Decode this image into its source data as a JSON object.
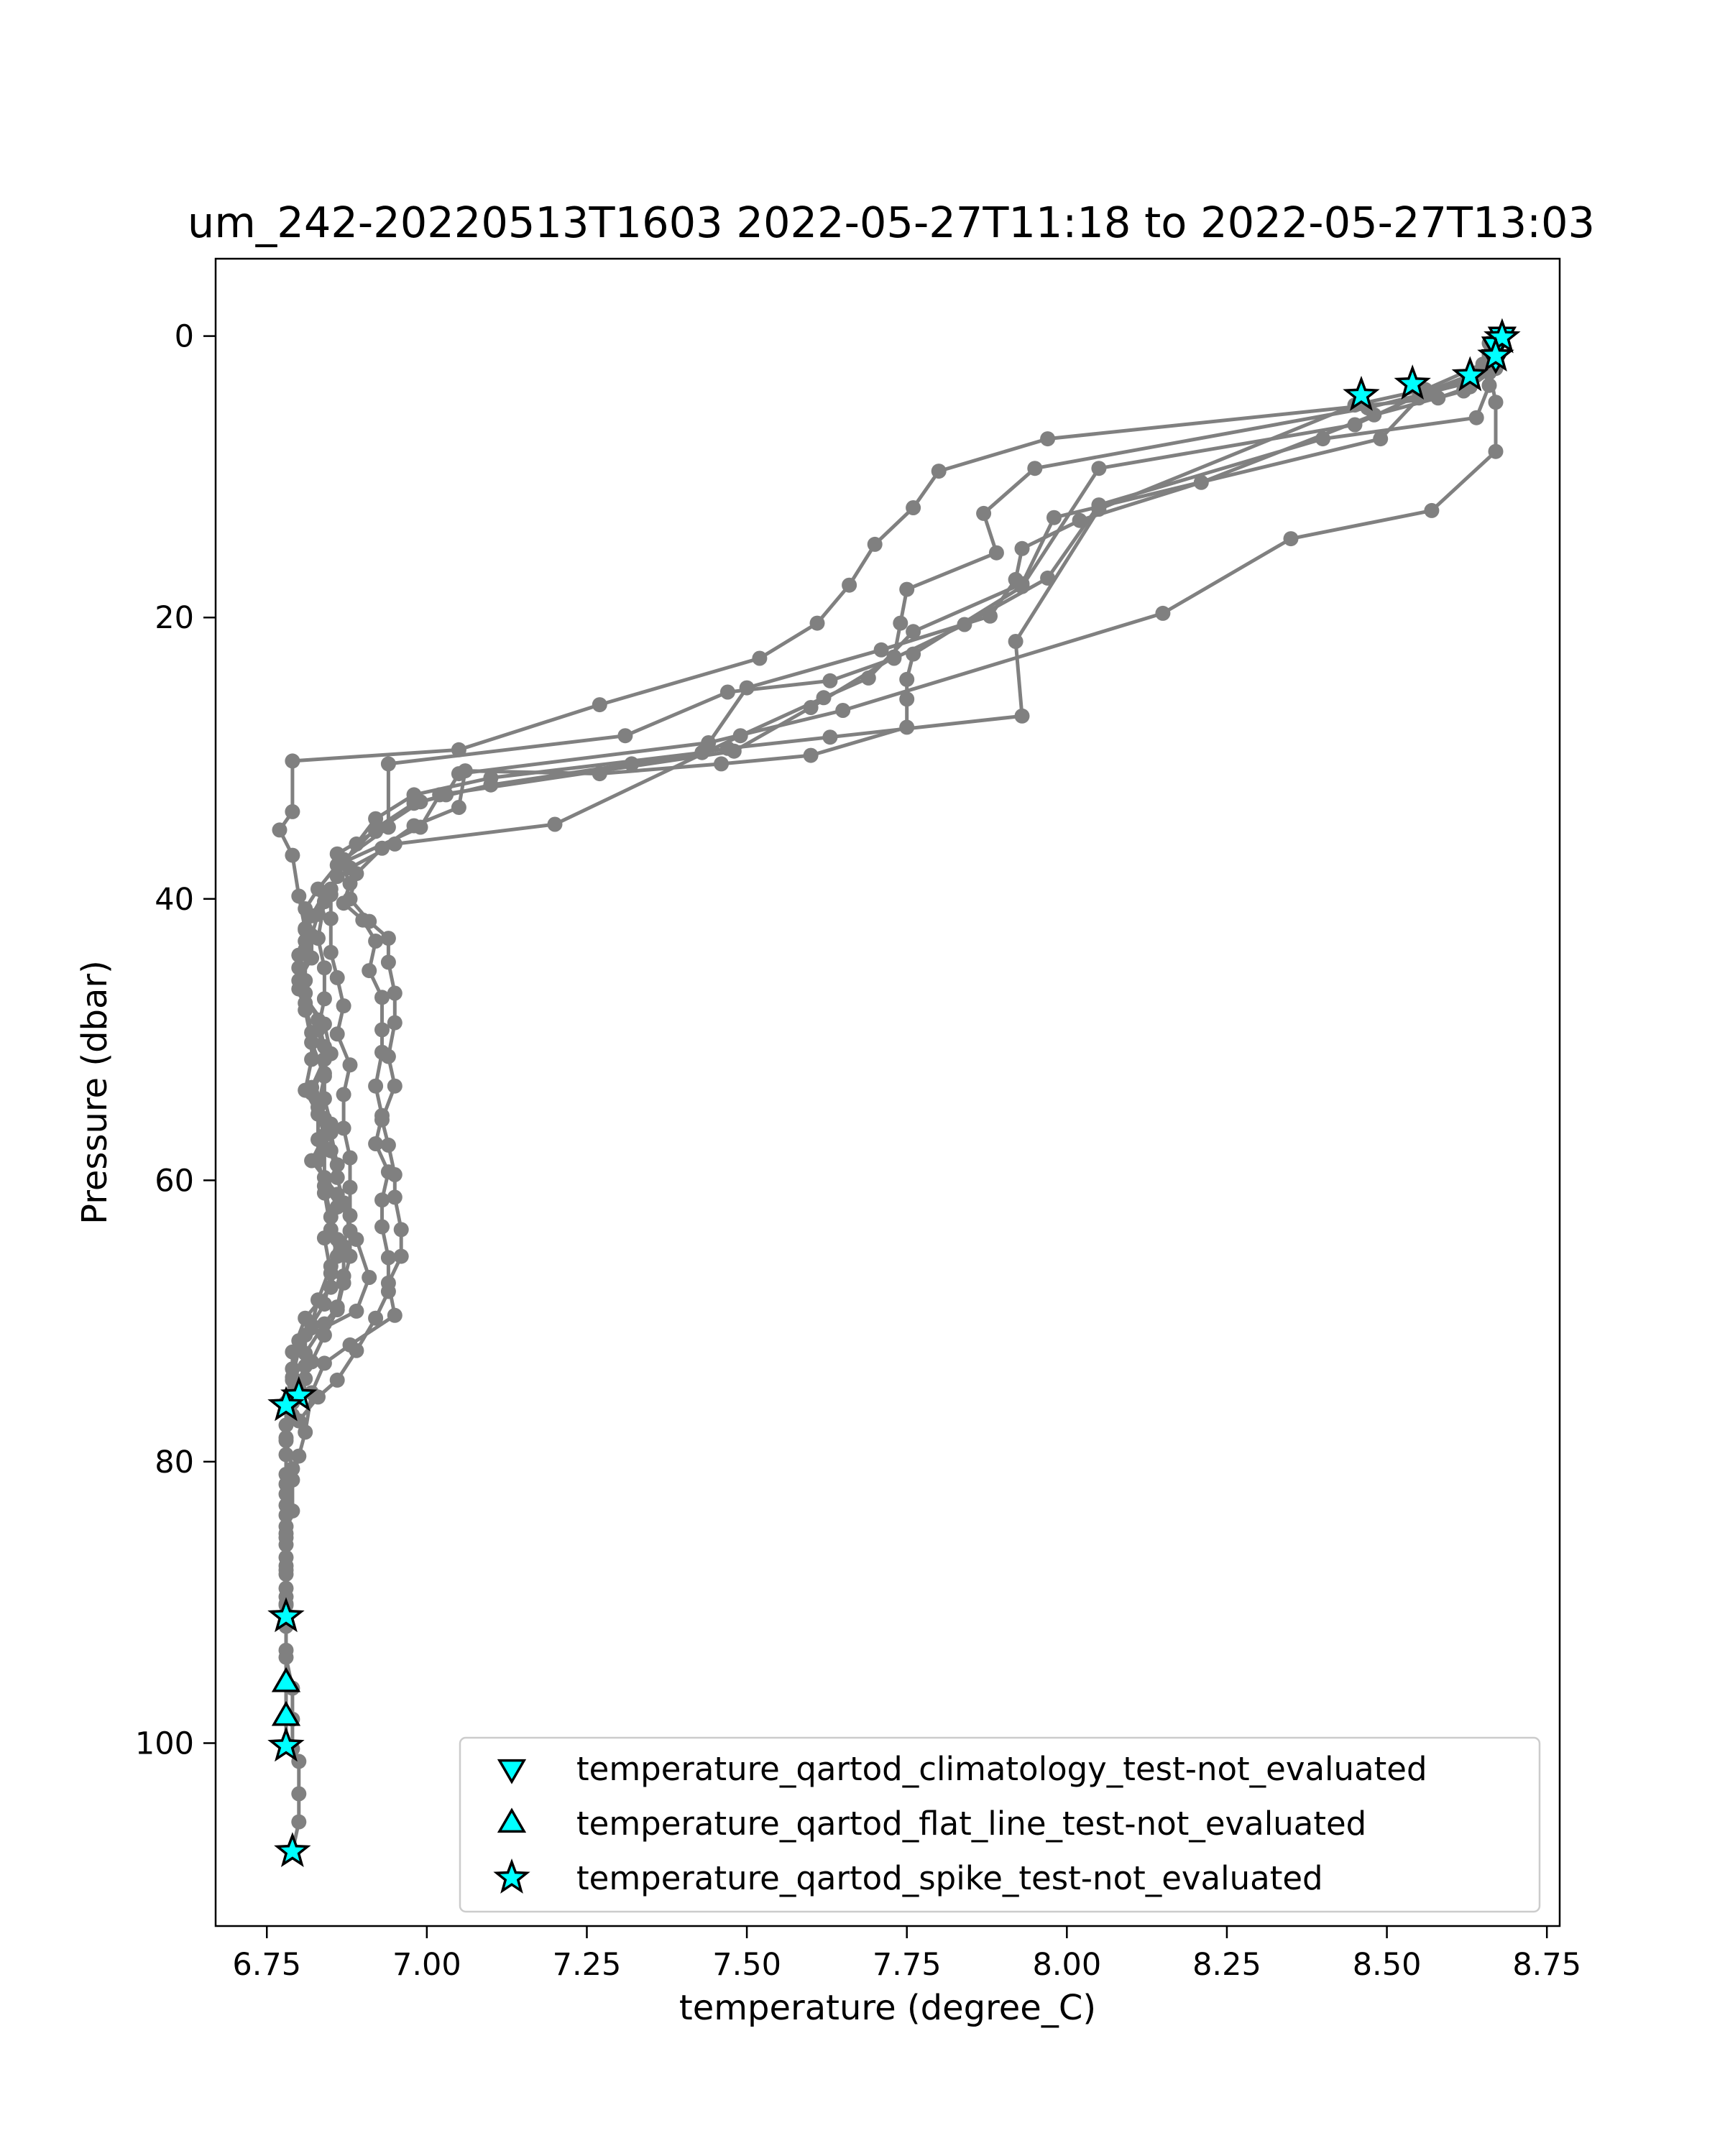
{
  "chart_data": {
    "type": "line",
    "title": "um_242-20220513T1603 2022-05-27T11:18 to 2022-05-27T13:03",
    "xlabel": "temperature (degree_C)",
    "ylabel": "Pressure (dbar)",
    "xlim": [
      6.67,
      8.77
    ],
    "ylim": [
      113,
      -5.5
    ],
    "y_inverted": true,
    "grid": false,
    "legend_position": "lower-right",
    "x_ticks": [
      6.75,
      7.0,
      7.25,
      7.5,
      7.75,
      8.0,
      8.25,
      8.5,
      8.75
    ],
    "x_tick_labels": [
      "6.75",
      "7.00",
      "7.25",
      "7.50",
      "7.75",
      "8.00",
      "8.25",
      "8.50",
      "8.75"
    ],
    "y_ticks": [
      0,
      20,
      40,
      60,
      80,
      100
    ],
    "y_tick_labels": [
      "0",
      "20",
      "40",
      "60",
      "80",
      "100"
    ],
    "colors": {
      "profile_line": "#808080",
      "flag_fill": "#00ffff",
      "flag_edge": "#000000"
    },
    "profiles": [
      [
        [
          8.68,
          0.0
        ],
        [
          8.67,
          1.2
        ],
        [
          8.67,
          2.3
        ],
        [
          8.63,
          3.6
        ],
        [
          8.58,
          4.4
        ],
        [
          7.97,
          7.3
        ],
        [
          7.8,
          9.6
        ],
        [
          7.76,
          12.2
        ],
        [
          7.7,
          14.8
        ],
        [
          7.66,
          17.7
        ],
        [
          7.61,
          20.4
        ],
        [
          7.52,
          22.9
        ],
        [
          7.27,
          26.2
        ],
        [
          7.05,
          29.4
        ],
        [
          6.79,
          30.2
        ],
        [
          6.79,
          33.8
        ],
        [
          6.77,
          35.1
        ],
        [
          6.79,
          36.9
        ],
        [
          6.8,
          39.8
        ],
        [
          6.81,
          42.2
        ],
        [
          6.8,
          44.0
        ],
        [
          6.8,
          46.4
        ],
        [
          6.84,
          48.9
        ],
        [
          6.85,
          51.0
        ],
        [
          6.82,
          53.8
        ],
        [
          6.84,
          56.8
        ],
        [
          6.82,
          58.6
        ],
        [
          6.86,
          61.0
        ],
        [
          6.89,
          64.2
        ],
        [
          6.91,
          66.9
        ],
        [
          6.89,
          69.3
        ],
        [
          6.8,
          71.4
        ],
        [
          6.79,
          73.4
        ],
        [
          6.78,
          75.8
        ],
        [
          6.78,
          78.3
        ],
        [
          6.78,
          80.9
        ],
        [
          6.78,
          83.1
        ],
        [
          6.78,
          85.4
        ],
        [
          6.78,
          87.7
        ],
        [
          6.78,
          90.1
        ],
        [
          6.78,
          91.0
        ]
      ],
      [
        [
          8.67,
          0.6
        ],
        [
          8.66,
          2.1
        ],
        [
          8.62,
          3.4
        ],
        [
          8.47,
          5.1
        ],
        [
          7.95,
          9.4
        ],
        [
          7.87,
          12.6
        ],
        [
          7.89,
          15.4
        ],
        [
          7.75,
          18.0
        ],
        [
          7.74,
          20.4
        ],
        [
          7.73,
          22.8
        ],
        [
          7.6,
          26.4
        ],
        [
          7.48,
          29.5
        ],
        [
          7.02,
          32.6
        ],
        [
          6.99,
          34.9
        ],
        [
          6.86,
          37.6
        ],
        [
          6.83,
          39.3
        ],
        [
          6.81,
          40.7
        ],
        [
          6.81,
          42.1
        ],
        [
          6.81,
          43.6
        ],
        [
          6.81,
          45.8
        ],
        [
          6.81,
          47.9
        ],
        [
          6.82,
          50.2
        ],
        [
          6.84,
          52.6
        ],
        [
          6.83,
          54.8
        ],
        [
          6.85,
          56.6
        ],
        [
          6.86,
          58.9
        ],
        [
          6.84,
          60.9
        ],
        [
          6.85,
          63.5
        ],
        [
          6.86,
          65.4
        ],
        [
          6.85,
          67.6
        ],
        [
          6.81,
          69.8
        ],
        [
          6.79,
          72.2
        ],
        [
          6.79,
          74.2
        ],
        [
          6.78,
          76.1
        ],
        [
          6.78,
          78.5
        ],
        [
          6.79,
          80.5
        ],
        [
          6.78,
          82.3
        ],
        [
          6.78,
          84.6
        ],
        [
          6.78,
          86.8
        ],
        [
          6.78,
          89.0
        ],
        [
          6.78,
          91.3
        ],
        [
          6.78,
          93.4
        ],
        [
          6.78,
          95.7
        ],
        [
          6.78,
          98.1
        ],
        [
          6.78,
          100.2
        ]
      ],
      [
        [
          8.67,
          1.0
        ],
        [
          8.64,
          2.6
        ],
        [
          8.56,
          4.0
        ],
        [
          8.45,
          6.3
        ],
        [
          8.05,
          9.4
        ],
        [
          7.93,
          17.8
        ],
        [
          7.76,
          22.6
        ],
        [
          7.75,
          24.4
        ],
        [
          7.75,
          25.8
        ],
        [
          7.75,
          27.8
        ],
        [
          7.6,
          29.8
        ],
        [
          7.46,
          30.4
        ],
        [
          7.27,
          31.1
        ],
        [
          7.06,
          30.9
        ],
        [
          7.05,
          33.5
        ],
        [
          6.98,
          34.8
        ],
        [
          6.93,
          36.4
        ],
        [
          6.89,
          38.2
        ],
        [
          6.88,
          40.0
        ],
        [
          6.91,
          41.6
        ],
        [
          6.94,
          42.8
        ],
        [
          6.94,
          44.5
        ],
        [
          6.95,
          46.7
        ],
        [
          6.95,
          48.8
        ],
        [
          6.94,
          51.2
        ],
        [
          6.95,
          53.3
        ],
        [
          6.93,
          55.7
        ],
        [
          6.94,
          57.5
        ],
        [
          6.95,
          59.6
        ],
        [
          6.95,
          61.2
        ],
        [
          6.96,
          63.5
        ],
        [
          6.96,
          65.4
        ],
        [
          6.94,
          67.3
        ],
        [
          6.95,
          69.6
        ],
        [
          6.88,
          71.7
        ],
        [
          6.84,
          73.0
        ],
        [
          6.82,
          75.1
        ],
        [
          6.81,
          77.9
        ],
        [
          6.8,
          79.6
        ],
        [
          6.79,
          81.3
        ],
        [
          6.79,
          83.5
        ],
        [
          6.78,
          85.1
        ],
        [
          6.78,
          87.4
        ],
        [
          6.78,
          89.6
        ],
        [
          6.78,
          91.7
        ],
        [
          6.78,
          93.9
        ],
        [
          6.79,
          96.1
        ],
        [
          6.79,
          98.3
        ],
        [
          6.79,
          100.4
        ],
        [
          6.8,
          101.3
        ],
        [
          6.8,
          103.6
        ],
        [
          6.8,
          105.6
        ],
        [
          6.79,
          107.7
        ]
      ],
      [
        [
          8.67,
          0.9
        ],
        [
          8.66,
          2.4
        ],
        [
          8.67,
          4.7
        ],
        [
          8.67,
          8.2
        ],
        [
          8.57,
          12.4
        ],
        [
          8.35,
          14.4
        ],
        [
          8.15,
          19.7
        ],
        [
          7.65,
          26.6
        ],
        [
          7.44,
          28.9
        ],
        [
          7.05,
          31.1
        ],
        [
          7.03,
          32.6
        ],
        [
          6.99,
          33.1
        ],
        [
          6.92,
          35.2
        ],
        [
          6.86,
          36.8
        ],
        [
          6.88,
          38.9
        ],
        [
          6.87,
          40.3
        ],
        [
          6.9,
          41.5
        ],
        [
          6.92,
          43.0
        ],
        [
          6.91,
          45.1
        ],
        [
          6.93,
          47.0
        ],
        [
          6.93,
          49.3
        ],
        [
          6.93,
          50.9
        ],
        [
          6.92,
          53.3
        ],
        [
          6.93,
          55.4
        ],
        [
          6.92,
          57.4
        ],
        [
          6.94,
          59.4
        ],
        [
          6.93,
          61.4
        ],
        [
          6.93,
          63.3
        ],
        [
          6.94,
          65.5
        ],
        [
          6.94,
          67.9
        ],
        [
          6.92,
          69.8
        ],
        [
          6.89,
          72.1
        ],
        [
          6.86,
          74.2
        ],
        [
          6.83,
          75.4
        ],
        [
          6.8,
          77.1
        ]
      ],
      [
        [
          8.66,
          0.5
        ],
        [
          8.66,
          1.3
        ],
        [
          8.66,
          3.5
        ],
        [
          8.64,
          5.8
        ],
        [
          8.4,
          7.3
        ],
        [
          8.05,
          12.0
        ],
        [
          7.97,
          17.2
        ],
        [
          7.84,
          20.5
        ],
        [
          7.73,
          22.9
        ],
        [
          7.63,
          24.5
        ],
        [
          7.47,
          25.3
        ],
        [
          7.31,
          28.4
        ],
        [
          6.94,
          30.4
        ],
        [
          6.94,
          34.9
        ],
        [
          6.87,
          37.2
        ],
        [
          6.85,
          39.7
        ],
        [
          6.85,
          41.4
        ],
        [
          6.85,
          43.8
        ],
        [
          6.86,
          45.6
        ],
        [
          6.87,
          47.6
        ],
        [
          6.86,
          49.6
        ],
        [
          6.88,
          51.8
        ],
        [
          6.87,
          53.9
        ],
        [
          6.87,
          56.3
        ],
        [
          6.88,
          58.4
        ],
        [
          6.88,
          60.5
        ],
        [
          6.88,
          62.5
        ],
        [
          6.87,
          64.7
        ],
        [
          6.87,
          66.8
        ],
        [
          6.86,
          69.0
        ],
        [
          6.84,
          70.2
        ],
        [
          6.81,
          72.3
        ],
        [
          6.81,
          74.1
        ],
        [
          6.8,
          75.2
        ]
      ],
      [
        [
          8.68,
          0.2
        ],
        [
          8.67,
          1.4
        ],
        [
          8.66,
          2.6
        ],
        [
          8.62,
          3.9
        ],
        [
          8.48,
          5.6
        ],
        [
          8.21,
          10.4
        ],
        [
          8.02,
          13.1
        ],
        [
          7.93,
          15.1
        ],
        [
          7.92,
          17.3
        ],
        [
          7.88,
          19.9
        ],
        [
          7.71,
          22.3
        ],
        [
          7.5,
          25.0
        ],
        [
          7.43,
          29.6
        ],
        [
          7.1,
          31.4
        ],
        [
          6.98,
          32.6
        ],
        [
          6.92,
          34.3
        ],
        [
          6.89,
          36.1
        ],
        [
          6.86,
          38.4
        ],
        [
          6.84,
          40.2
        ],
        [
          6.83,
          42.8
        ],
        [
          6.84,
          44.9
        ],
        [
          6.84,
          47.1
        ],
        [
          6.83,
          49.3
        ],
        [
          6.84,
          51.4
        ],
        [
          6.82,
          53.4
        ],
        [
          6.84,
          55.6
        ],
        [
          6.84,
          57.7
        ],
        [
          6.84,
          59.8
        ],
        [
          6.86,
          61.9
        ],
        [
          6.84,
          64.1
        ],
        [
          6.85,
          66.6
        ],
        [
          6.84,
          68.8
        ],
        [
          6.81,
          71.0
        ],
        [
          6.81,
          73.2
        ],
        [
          6.79,
          75.3
        ],
        [
          6.78,
          77.4
        ],
        [
          6.78,
          79.5
        ],
        [
          6.78,
          81.6
        ],
        [
          6.78,
          83.8
        ],
        [
          6.78,
          85.9
        ],
        [
          6.78,
          88.0
        ],
        [
          6.78,
          90.2
        ],
        [
          6.78,
          91.1
        ]
      ],
      [
        [
          8.67,
          0.7
        ],
        [
          8.65,
          2.0
        ],
        [
          8.56,
          3.8
        ],
        [
          8.45,
          4.9
        ],
        [
          8.05,
          12.3
        ],
        [
          7.92,
          21.7
        ],
        [
          7.93,
          27.0
        ],
        [
          7.63,
          28.5
        ],
        [
          7.47,
          29.3
        ],
        [
          7.32,
          30.4
        ],
        [
          7.1,
          31.9
        ],
        [
          6.98,
          33.2
        ],
        [
          6.92,
          35.0
        ],
        [
          6.87,
          37.3
        ],
        [
          6.85,
          39.3
        ],
        [
          6.83,
          41.1
        ],
        [
          6.82,
          42.6
        ],
        [
          6.82,
          44.2
        ],
        [
          6.8,
          45.8
        ],
        [
          6.81,
          47.4
        ],
        [
          6.82,
          49.5
        ],
        [
          6.82,
          51.4
        ],
        [
          6.81,
          53.6
        ],
        [
          6.83,
          55.3
        ],
        [
          6.83,
          57.1
        ],
        [
          6.83,
          58.6
        ],
        [
          6.84,
          60.4
        ],
        [
          6.85,
          62.6
        ],
        [
          6.86,
          64.2
        ],
        [
          6.85,
          66.1
        ],
        [
          6.83,
          68.5
        ],
        [
          6.82,
          70.3
        ],
        [
          6.8,
          72.0
        ],
        [
          6.79,
          74.0
        ],
        [
          6.79,
          75.8
        ]
      ],
      [
        [
          8.66,
          1.5
        ],
        [
          8.63,
          2.9
        ],
        [
          8.55,
          4.4
        ],
        [
          8.49,
          7.3
        ],
        [
          7.98,
          12.9
        ],
        [
          7.93,
          17.6
        ],
        [
          7.76,
          21.0
        ],
        [
          7.69,
          24.3
        ],
        [
          7.62,
          25.7
        ],
        [
          7.49,
          28.4
        ],
        [
          7.2,
          34.7
        ],
        [
          6.95,
          36.1
        ],
        [
          6.88,
          37.8
        ],
        [
          6.84,
          39.6
        ],
        [
          6.82,
          41.2
        ],
        [
          6.81,
          43.0
        ],
        [
          6.8,
          44.9
        ],
        [
          6.81,
          46.7
        ],
        [
          6.83,
          48.6
        ],
        [
          6.84,
          50.5
        ],
        [
          6.84,
          52.4
        ],
        [
          6.84,
          54.2
        ],
        [
          6.85,
          56.0
        ],
        [
          6.85,
          57.9
        ],
        [
          6.86,
          59.8
        ],
        [
          6.87,
          61.6
        ],
        [
          6.88,
          63.6
        ],
        [
          6.88,
          65.4
        ],
        [
          6.87,
          67.3
        ],
        [
          6.86,
          69.2
        ],
        [
          6.84,
          71.0
        ],
        [
          6.82,
          72.9
        ],
        [
          6.8,
          74.8
        ],
        [
          6.79,
          76.7
        ]
      ]
    ],
    "series": [
      {
        "name": "temperature_qartod_climatology_test-not_evaluated",
        "marker": "triangle-down",
        "points": [
          [
            8.68,
            0.0
          ],
          [
            8.67,
            0.7
          ],
          [
            8.67,
            1.6
          ]
        ]
      },
      {
        "name": "temperature_qartod_flat_line_test-not_evaluated",
        "marker": "triangle-up",
        "points": [
          [
            6.78,
            95.7
          ],
          [
            6.78,
            98.1
          ]
        ]
      },
      {
        "name": "temperature_qartod_spike_test-not_evaluated",
        "marker": "star",
        "points": [
          [
            8.68,
            0.1
          ],
          [
            8.67,
            1.4
          ],
          [
            8.63,
            2.8
          ],
          [
            8.54,
            3.4
          ],
          [
            8.46,
            4.2
          ],
          [
            6.8,
            75.3
          ],
          [
            6.78,
            76.0
          ],
          [
            6.78,
            91.0
          ],
          [
            6.78,
            100.2
          ],
          [
            6.79,
            107.7
          ]
        ]
      }
    ]
  }
}
